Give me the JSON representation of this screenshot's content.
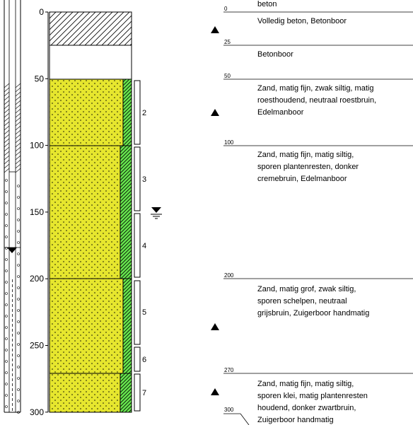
{
  "depth_axis": {
    "ticks": [
      "0",
      "50",
      "100",
      "150",
      "200",
      "250",
      "300"
    ]
  },
  "samples": [
    {
      "number": "2"
    },
    {
      "number": "3"
    },
    {
      "number": "4"
    },
    {
      "number": "5"
    },
    {
      "number": "6"
    },
    {
      "number": "7"
    }
  ],
  "layers": [
    {
      "top_depth_label": "0",
      "lines": [
        "beton",
        "Volledig beton, Betonboor"
      ]
    },
    {
      "top_depth_label": "25",
      "lines": [
        "Betonboor"
      ]
    },
    {
      "top_depth_label": "50",
      "lines": [
        "Zand, matig fijn, zwak siltig, matig",
        "roesthoudend, neutraal roestbruin,",
        "Edelmanboor"
      ]
    },
    {
      "top_depth_label": "100",
      "lines": [
        "Zand, matig fijn, matig siltig,",
        "sporen plantenresten, donker",
        "cremebruin,  Edelmanboor"
      ]
    },
    {
      "top_depth_label": "200",
      "lines": [
        "Zand, matig grof, zwak siltig,",
        "sporen schelpen, neutraal",
        "grijsbruin, Zuigerboor handmatig"
      ]
    },
    {
      "top_depth_label": "270",
      "lines": [
        "Zand, matig fijn, matig siltig,",
        "sporen klei, matig plantenresten",
        "houdend, donker zwartbruin,",
        "Zuigerboor handmatig"
      ]
    }
  ],
  "end_label": "300",
  "colors": {
    "sand": "#e6e62e",
    "silt_strip": "#66e64d",
    "line": "#000000"
  }
}
